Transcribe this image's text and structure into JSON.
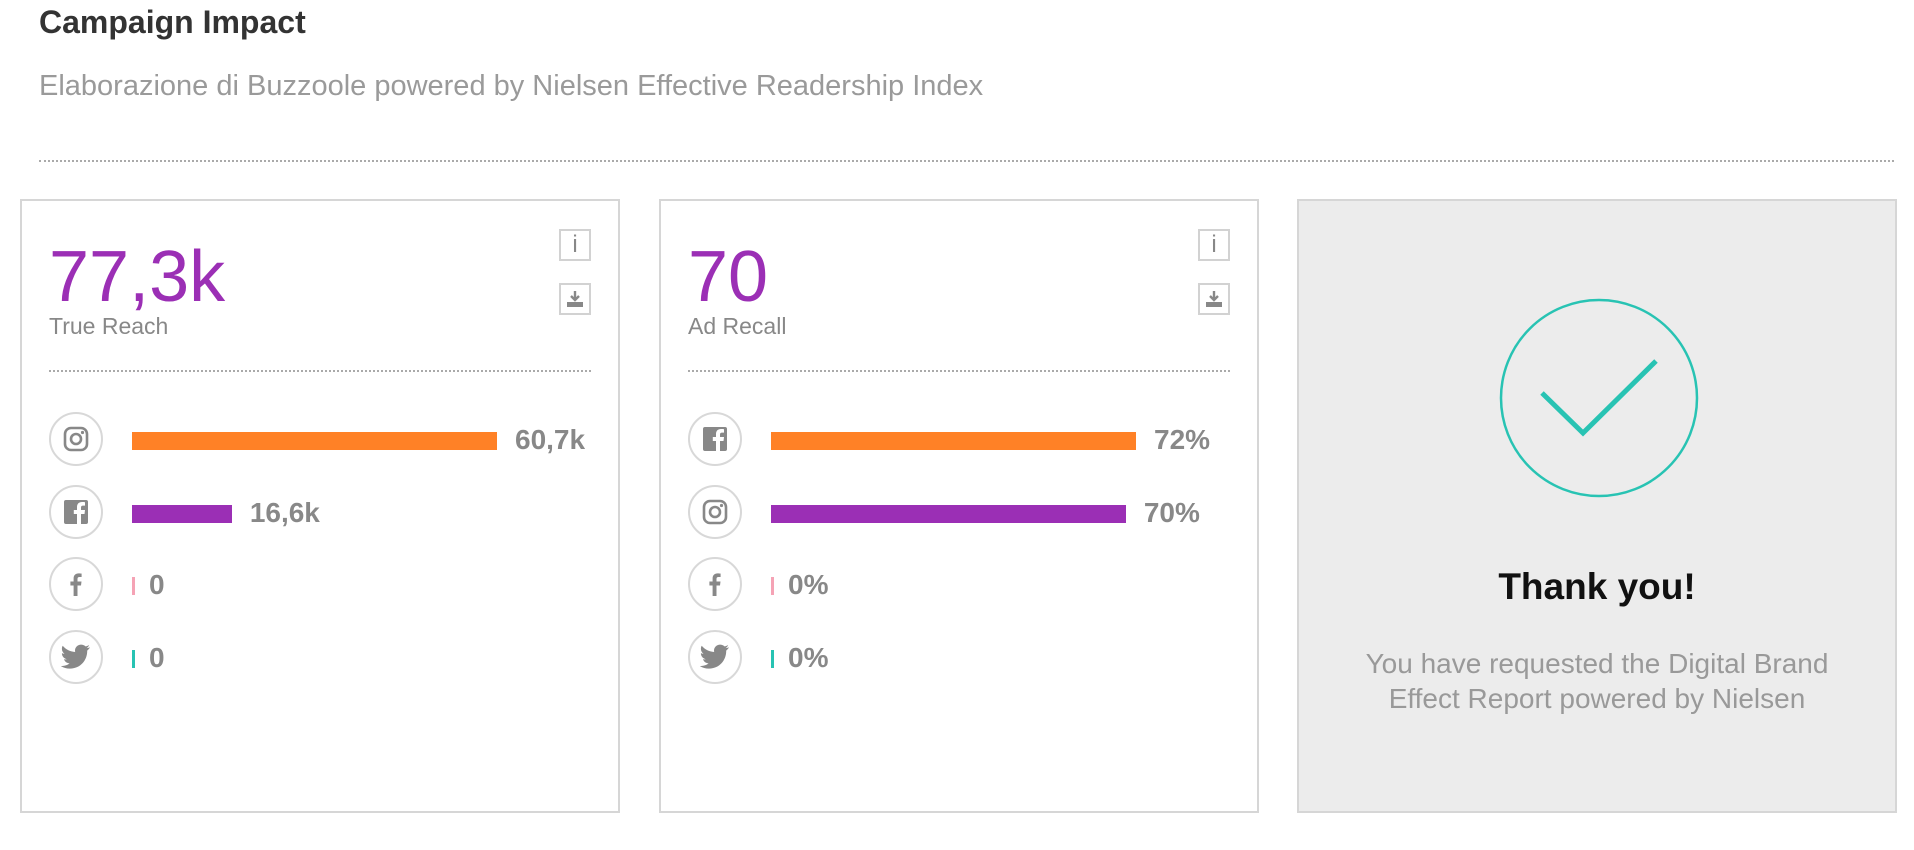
{
  "header": {
    "title": "Campaign Impact",
    "subtitle": "Elaborazione di Buzzoole powered by Nielsen Effective Readership Index"
  },
  "cards": [
    {
      "value": "77,3k",
      "label": "True Reach",
      "info_label": "i",
      "rows": [
        {
          "icon": "instagram-icon",
          "value_label": "60,7k",
          "value": 60.7,
          "color": "#ff8126"
        },
        {
          "icon": "facebook-square-icon",
          "value_label": "16,6k",
          "value": 16.6,
          "color": "#9b2fb5"
        },
        {
          "icon": "facebook-f-icon",
          "value_label": "0",
          "value": 0,
          "color": "#f5a3b5"
        },
        {
          "icon": "twitter-icon",
          "value_label": "0",
          "value": 0,
          "color": "#28c3b3"
        }
      ]
    },
    {
      "value": "70",
      "label": "Ad Recall",
      "info_label": "i",
      "rows": [
        {
          "icon": "facebook-square-icon",
          "value_label": "72%",
          "value": 72,
          "color": "#ff8126"
        },
        {
          "icon": "instagram-icon",
          "value_label": "70%",
          "value": 70,
          "color": "#9b2fb5"
        },
        {
          "icon": "facebook-f-icon",
          "value_label": "0%",
          "value": 0,
          "color": "#f5a3b5"
        },
        {
          "icon": "twitter-icon",
          "value_label": "0%",
          "value": 0,
          "color": "#28c3b3"
        }
      ]
    }
  ],
  "thank_you": {
    "title": "Thank you!",
    "message": "You have requested the Digital Brand Effect Report powered by Nielsen",
    "icon": "check-circle-icon",
    "accent_color": "#28c3b3"
  }
}
